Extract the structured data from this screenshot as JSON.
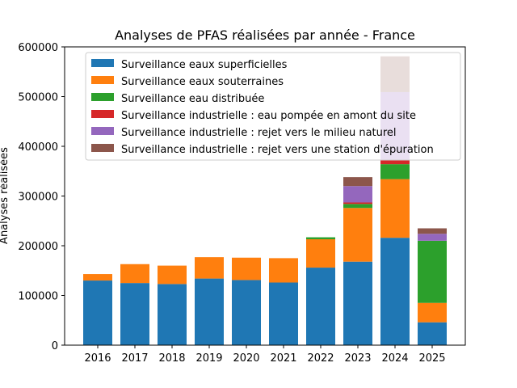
{
  "chart_data": {
    "type": "bar",
    "stacked": true,
    "title": "Analyses de PFAS réalisées par année - France",
    "xlabel": "",
    "ylabel": "Analyses réalisées",
    "ylim": [
      0,
      600000
    ],
    "yticks": [
      0,
      100000,
      200000,
      300000,
      400000,
      500000,
      600000
    ],
    "ytick_labels": [
      "0",
      "100000",
      "200000",
      "300000",
      "400000",
      "500000",
      "600000"
    ],
    "grid": false,
    "legend_position": "upper-left",
    "categories": [
      "2016",
      "2017",
      "2018",
      "2019",
      "2020",
      "2021",
      "2022",
      "2023",
      "2024",
      "2025"
    ],
    "series": [
      {
        "name": "Surveillance eaux superficielles",
        "color": "#1f77b4",
        "values": [
          130000,
          125000,
          123000,
          134000,
          131000,
          126000,
          156000,
          168000,
          216000,
          46000
        ]
      },
      {
        "name": "Surveillance eaux souterraines",
        "color": "#ff7f0e",
        "values": [
          13000,
          38000,
          37000,
          43000,
          45000,
          49000,
          57000,
          108000,
          118000,
          39000
        ]
      },
      {
        "name": "Surveillance eau distribuée",
        "color": "#2ca02c",
        "values": [
          0,
          0,
          0,
          0,
          0,
          0,
          4000,
          8000,
          30000,
          125000
        ]
      },
      {
        "name": "Surveillance industrielle : eau pompée en amont du site",
        "color": "#d62728",
        "values": [
          0,
          0,
          0,
          0,
          0,
          0,
          0,
          3000,
          8000,
          0
        ]
      },
      {
        "name": "Surveillance industrielle : rejet vers le milieu naturel",
        "color": "#9467bd",
        "values": [
          0,
          0,
          0,
          0,
          0,
          0,
          0,
          33000,
          137000,
          14000
        ]
      },
      {
        "name": "Surveillance industrielle : rejet vers une station d'épuration",
        "color": "#8c564b",
        "values": [
          0,
          0,
          0,
          0,
          0,
          0,
          0,
          18000,
          72000,
          11000
        ]
      }
    ]
  }
}
